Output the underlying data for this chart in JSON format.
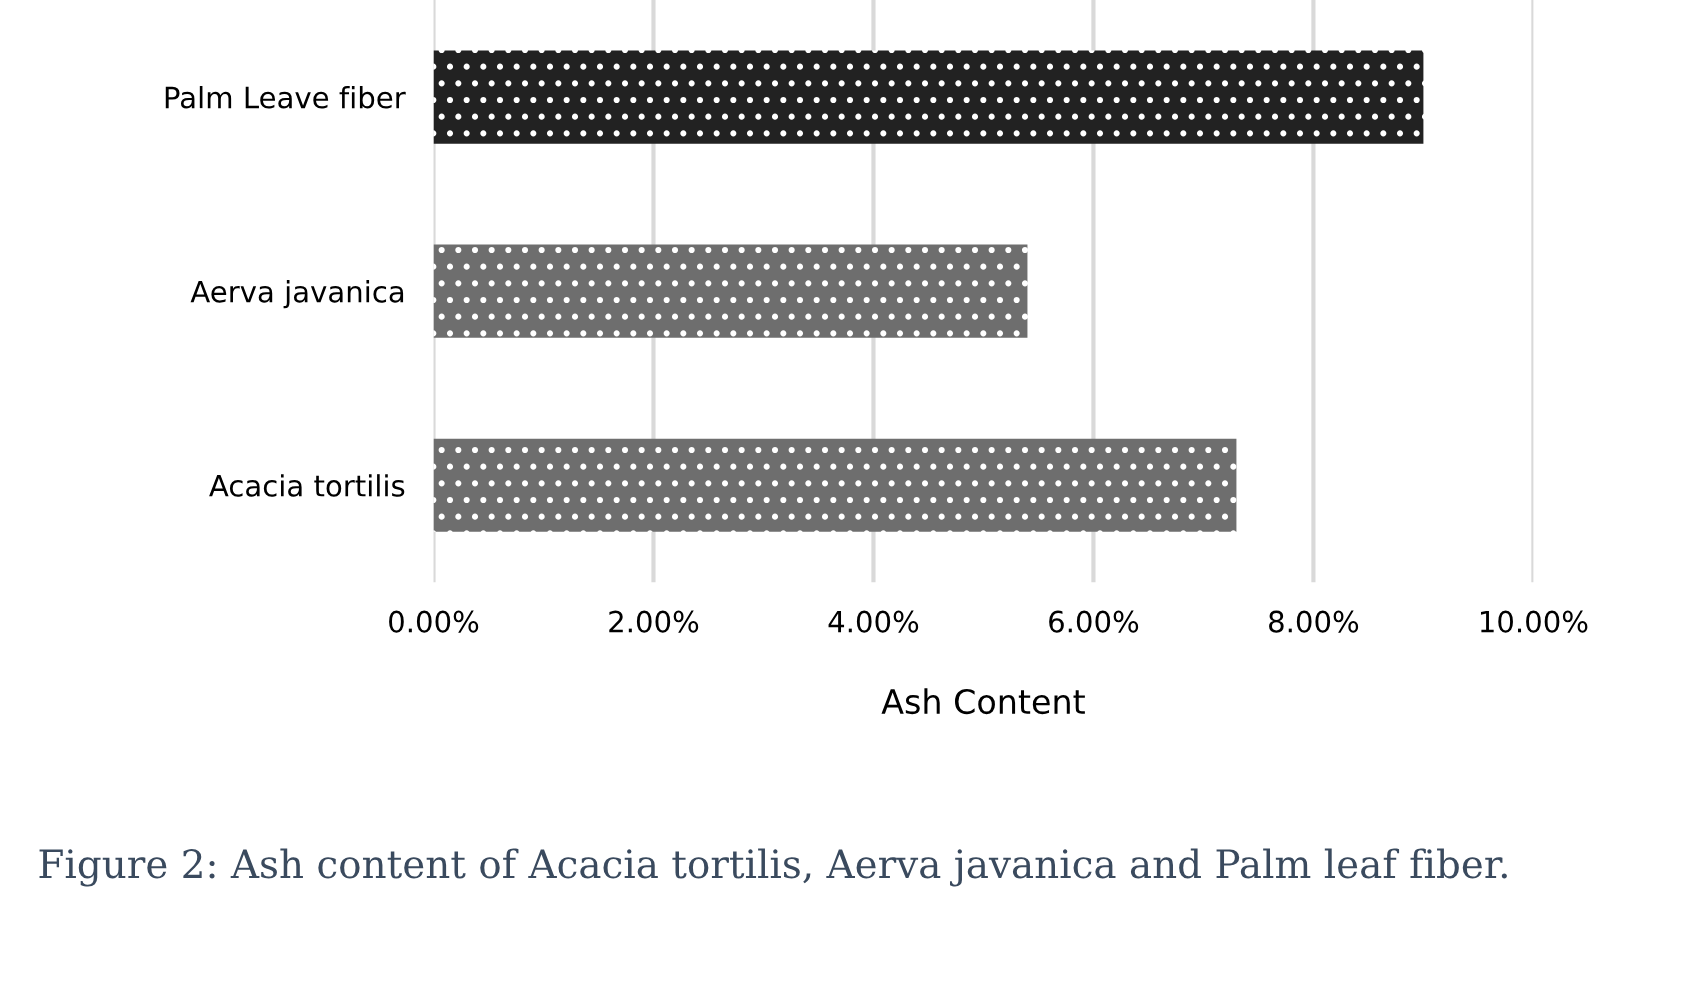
{
  "chart_data": {
    "type": "bar",
    "orientation": "horizontal",
    "categories": [
      "Palm Leave fiber",
      "Aerva javanica",
      "Acacia tortilis"
    ],
    "values": [
      9.0,
      5.4,
      7.3
    ],
    "colors": [
      "#222222",
      "#6e6e6e",
      "#6e6e6e"
    ],
    "xlabel": "Ash Content",
    "xlim": [
      0,
      10
    ],
    "xticks": [
      {
        "value": 0,
        "label": "0.00%"
      },
      {
        "value": 2,
        "label": "2.00%"
      },
      {
        "value": 4,
        "label": "4.00%"
      },
      {
        "value": 6,
        "label": "6.00%"
      },
      {
        "value": 8,
        "label": "8.00%"
      },
      {
        "value": 10,
        "label": "10.00%"
      }
    ],
    "grid": "x",
    "annotations": [
      "Figure 2: Ash content of Acacia tortilis, Aerva javanica and Palm leaf fiber."
    ]
  }
}
